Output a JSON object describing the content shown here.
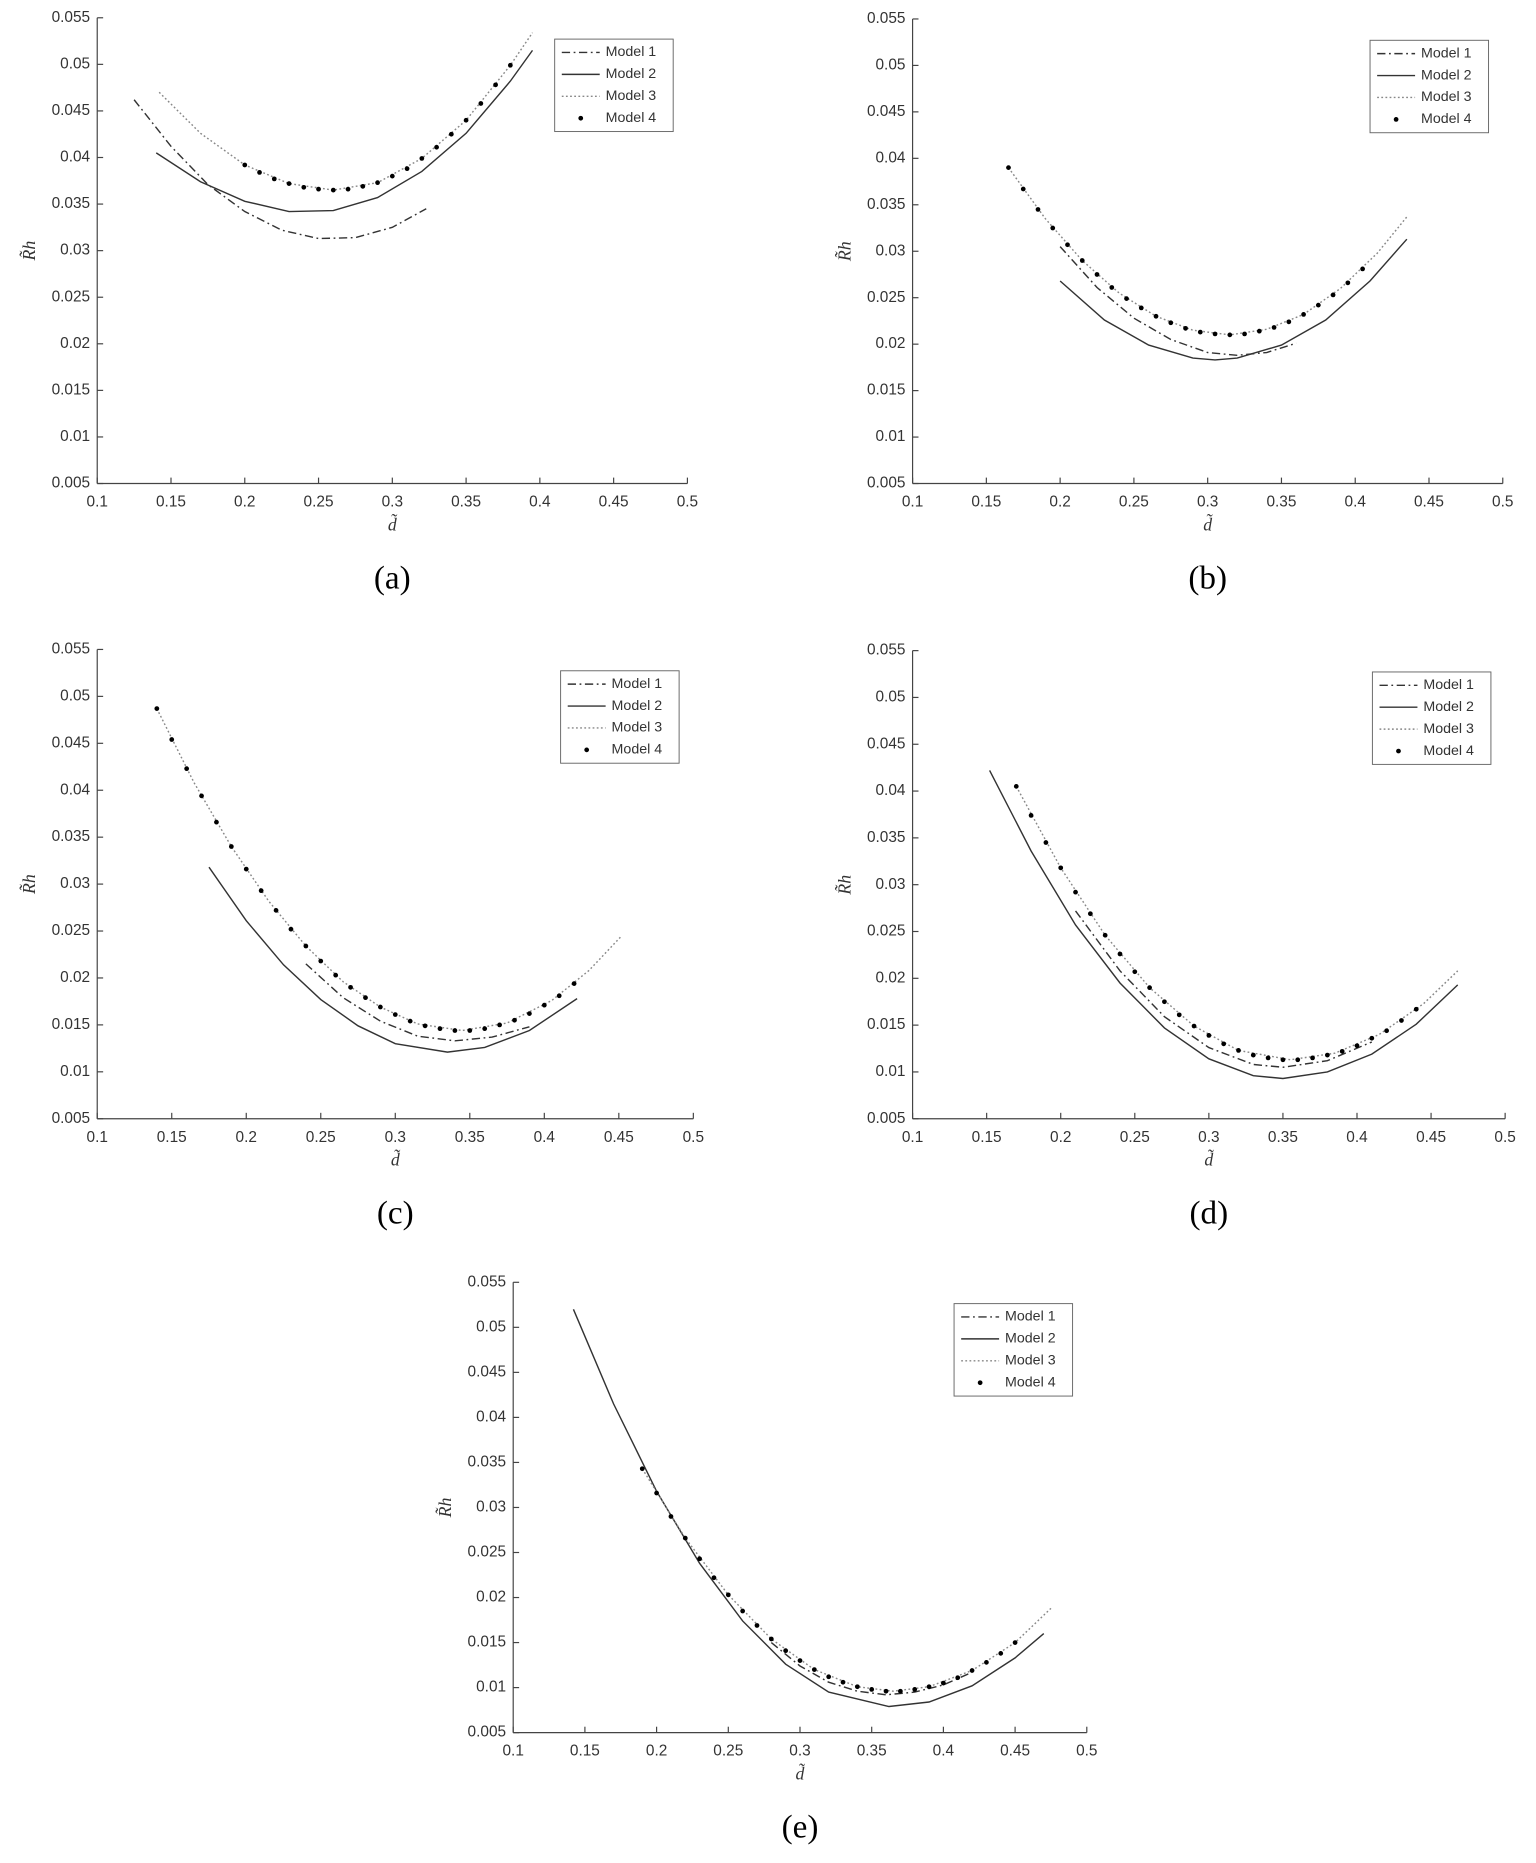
{
  "chart_data": [
    {
      "type": "line",
      "caption": "(a)",
      "xlabel": "d̃",
      "ylabel": "R̃h",
      "xlim": [
        0.1,
        0.5
      ],
      "xticks": [
        0.1,
        0.15,
        0.2,
        0.25,
        0.3,
        0.35,
        0.4,
        0.45,
        0.5
      ],
      "ylim": [
        0.005,
        0.055
      ],
      "yticks": [
        0.005,
        0.01,
        0.015,
        0.02,
        0.025,
        0.03,
        0.035,
        0.04,
        0.045,
        0.05,
        0.055
      ],
      "legend": "upper right",
      "series": [
        {
          "name": "Model 1",
          "color": "#333333",
          "style": "dashdot",
          "x": [
            0.125,
            0.15,
            0.175,
            0.2,
            0.225,
            0.25,
            0.275,
            0.3,
            0.323
          ],
          "values": [
            0.0462,
            0.0412,
            0.0371,
            0.0342,
            0.0322,
            0.0313,
            0.0314,
            0.0325,
            0.0345
          ]
        },
        {
          "name": "Model 2",
          "color": "#333333",
          "style": "solid",
          "x": [
            0.14,
            0.17,
            0.2,
            0.23,
            0.26,
            0.29,
            0.32,
            0.35,
            0.38,
            0.395
          ],
          "values": [
            0.0405,
            0.0374,
            0.0353,
            0.0342,
            0.0343,
            0.0357,
            0.0385,
            0.0426,
            0.0482,
            0.0515
          ]
        },
        {
          "name": "Model 3",
          "color": "#888888",
          "style": "dotted",
          "x": [
            0.142,
            0.17,
            0.2,
            0.23,
            0.26,
            0.29,
            0.32,
            0.35,
            0.38,
            0.395
          ],
          "values": [
            0.047,
            0.0426,
            0.0392,
            0.0372,
            0.0365,
            0.0373,
            0.0399,
            0.044,
            0.0499,
            0.0534
          ]
        },
        {
          "name": "Model 4",
          "color": "#000000",
          "style": "markers",
          "x": [
            0.2,
            0.21,
            0.22,
            0.23,
            0.24,
            0.25,
            0.26,
            0.27,
            0.28,
            0.29,
            0.3,
            0.31,
            0.32,
            0.33,
            0.34,
            0.35,
            0.36,
            0.37,
            0.38
          ],
          "values": [
            0.0392,
            0.0384,
            0.0377,
            0.0372,
            0.0368,
            0.0366,
            0.0365,
            0.0366,
            0.0369,
            0.0373,
            0.038,
            0.0388,
            0.0399,
            0.0411,
            0.0425,
            0.044,
            0.0458,
            0.0478,
            0.0499
          ]
        }
      ]
    },
    {
      "type": "line",
      "caption": "(b)",
      "xlabel": "d̃",
      "ylabel": "R̃h",
      "xlim": [
        0.1,
        0.5
      ],
      "xticks": [
        0.1,
        0.15,
        0.2,
        0.25,
        0.3,
        0.35,
        0.4,
        0.45,
        0.5
      ],
      "ylim": [
        0.005,
        0.055
      ],
      "yticks": [
        0.005,
        0.01,
        0.015,
        0.02,
        0.025,
        0.03,
        0.035,
        0.04,
        0.045,
        0.05,
        0.055
      ],
      "legend": "upper right",
      "series": [
        {
          "name": "Model 1",
          "color": "#333333",
          "style": "dashdot",
          "x": [
            0.2,
            0.225,
            0.25,
            0.275,
            0.3,
            0.32,
            0.34,
            0.36
          ],
          "values": [
            0.0305,
            0.0261,
            0.0228,
            0.0205,
            0.0191,
            0.0188,
            0.0191,
            0.0201
          ]
        },
        {
          "name": "Model 2",
          "color": "#333333",
          "style": "solid",
          "x": [
            0.2,
            0.23,
            0.26,
            0.29,
            0.305,
            0.32,
            0.35,
            0.38,
            0.41,
            0.435
          ],
          "values": [
            0.0268,
            0.0226,
            0.0199,
            0.0185,
            0.0183,
            0.0185,
            0.0199,
            0.0226,
            0.0268,
            0.0313
          ]
        },
        {
          "name": "Model 3",
          "color": "#888888",
          "style": "dotted",
          "x": [
            0.165,
            0.19,
            0.215,
            0.24,
            0.265,
            0.29,
            0.315,
            0.34,
            0.365,
            0.39,
            0.415,
            0.435
          ],
          "values": [
            0.039,
            0.0335,
            0.029,
            0.0255,
            0.023,
            0.0215,
            0.021,
            0.0216,
            0.0232,
            0.026,
            0.0298,
            0.0337
          ]
        },
        {
          "name": "Model 4",
          "color": "#000000",
          "style": "markers",
          "x": [
            0.165,
            0.175,
            0.185,
            0.195,
            0.205,
            0.215,
            0.225,
            0.235,
            0.245,
            0.255,
            0.265,
            0.275,
            0.285,
            0.295,
            0.305,
            0.315,
            0.325,
            0.335,
            0.345,
            0.355,
            0.365,
            0.375,
            0.385,
            0.395,
            0.405
          ],
          "values": [
            0.039,
            0.0367,
            0.0345,
            0.0325,
            0.0307,
            0.029,
            0.0275,
            0.0261,
            0.0249,
            0.0239,
            0.023,
            0.0223,
            0.0217,
            0.0213,
            0.0211,
            0.021,
            0.0211,
            0.0214,
            0.0218,
            0.0224,
            0.0232,
            0.0242,
            0.0253,
            0.0266,
            0.0281
          ]
        }
      ]
    },
    {
      "type": "line",
      "caption": "(c)",
      "xlabel": "d̃",
      "ylabel": "R̃h",
      "xlim": [
        0.1,
        0.5
      ],
      "xticks": [
        0.1,
        0.15,
        0.2,
        0.25,
        0.3,
        0.35,
        0.4,
        0.45,
        0.5
      ],
      "ylim": [
        0.005,
        0.055
      ],
      "yticks": [
        0.005,
        0.01,
        0.015,
        0.02,
        0.025,
        0.03,
        0.035,
        0.04,
        0.045,
        0.05,
        0.055
      ],
      "legend": "upper right",
      "series": [
        {
          "name": "Model 1",
          "color": "#333333",
          "style": "dashdot",
          "x": [
            0.24,
            0.265,
            0.29,
            0.315,
            0.34,
            0.365,
            0.39
          ],
          "values": [
            0.0215,
            0.0179,
            0.0154,
            0.0138,
            0.0133,
            0.0137,
            0.0148
          ]
        },
        {
          "name": "Model 2",
          "color": "#333333",
          "style": "solid",
          "x": [
            0.175,
            0.2,
            0.225,
            0.25,
            0.275,
            0.3,
            0.335,
            0.36,
            0.39,
            0.422
          ],
          "values": [
            0.0318,
            0.0261,
            0.0214,
            0.0177,
            0.0149,
            0.013,
            0.0121,
            0.0126,
            0.0144,
            0.0178
          ]
        },
        {
          "name": "Model 3",
          "color": "#888888",
          "style": "dotted",
          "x": [
            0.14,
            0.165,
            0.19,
            0.215,
            0.24,
            0.265,
            0.29,
            0.315,
            0.345,
            0.375,
            0.405,
            0.43,
            0.452
          ],
          "values": [
            0.0487,
            0.0408,
            0.034,
            0.0282,
            0.0234,
            0.0196,
            0.0169,
            0.0151,
            0.0144,
            0.0152,
            0.0176,
            0.0208,
            0.0245
          ]
        },
        {
          "name": "Model 4",
          "color": "#000000",
          "style": "markers",
          "x": [
            0.14,
            0.15,
            0.16,
            0.17,
            0.18,
            0.19,
            0.2,
            0.21,
            0.22,
            0.23,
            0.24,
            0.25,
            0.26,
            0.27,
            0.28,
            0.29,
            0.3,
            0.31,
            0.32,
            0.33,
            0.34,
            0.35,
            0.36,
            0.37,
            0.38,
            0.39,
            0.4,
            0.41,
            0.42
          ],
          "values": [
            0.0487,
            0.0454,
            0.0423,
            0.0394,
            0.0366,
            0.034,
            0.0316,
            0.0293,
            0.0272,
            0.0252,
            0.0234,
            0.0218,
            0.0203,
            0.019,
            0.0179,
            0.0169,
            0.0161,
            0.0154,
            0.0149,
            0.0146,
            0.0144,
            0.0144,
            0.0146,
            0.015,
            0.0155,
            0.0162,
            0.0171,
            0.0181,
            0.0194
          ]
        }
      ]
    },
    {
      "type": "line",
      "caption": "(d)",
      "xlabel": "d̃",
      "ylabel": "R̃h",
      "xlim": [
        0.1,
        0.5
      ],
      "xticks": [
        0.1,
        0.15,
        0.2,
        0.25,
        0.3,
        0.35,
        0.4,
        0.45,
        0.5
      ],
      "ylim": [
        0.005,
        0.055
      ],
      "yticks": [
        0.005,
        0.01,
        0.015,
        0.02,
        0.025,
        0.03,
        0.035,
        0.04,
        0.045,
        0.05,
        0.055
      ],
      "legend": "upper right",
      "series": [
        {
          "name": "Model 1",
          "color": "#333333",
          "style": "dashdot",
          "x": [
            0.21,
            0.24,
            0.27,
            0.3,
            0.33,
            0.35,
            0.38,
            0.41
          ],
          "values": [
            0.0272,
            0.0208,
            0.0159,
            0.0126,
            0.0108,
            0.0105,
            0.0112,
            0.0132
          ]
        },
        {
          "name": "Model 2",
          "color": "#333333",
          "style": "solid",
          "x": [
            0.152,
            0.18,
            0.21,
            0.24,
            0.27,
            0.3,
            0.33,
            0.35,
            0.38,
            0.41,
            0.44,
            0.468
          ],
          "values": [
            0.0422,
            0.0336,
            0.0257,
            0.0195,
            0.0147,
            0.0114,
            0.0096,
            0.0093,
            0.01,
            0.0119,
            0.0151,
            0.0193
          ]
        },
        {
          "name": "Model 3",
          "color": "#888888",
          "style": "dotted",
          "x": [
            0.17,
            0.2,
            0.23,
            0.26,
            0.29,
            0.32,
            0.355,
            0.385,
            0.415,
            0.445,
            0.468
          ],
          "values": [
            0.0405,
            0.0318,
            0.0246,
            0.019,
            0.0149,
            0.0123,
            0.0113,
            0.012,
            0.014,
            0.0173,
            0.0208
          ]
        },
        {
          "name": "Model 4",
          "color": "#000000",
          "style": "markers",
          "x": [
            0.17,
            0.18,
            0.19,
            0.2,
            0.21,
            0.22,
            0.23,
            0.24,
            0.25,
            0.26,
            0.27,
            0.28,
            0.29,
            0.3,
            0.31,
            0.32,
            0.33,
            0.34,
            0.35,
            0.36,
            0.37,
            0.38,
            0.39,
            0.4,
            0.41,
            0.42,
            0.43,
            0.44
          ],
          "values": [
            0.0405,
            0.0374,
            0.0345,
            0.0318,
            0.0292,
            0.0269,
            0.0246,
            0.0226,
            0.0207,
            0.019,
            0.0175,
            0.0161,
            0.0149,
            0.0139,
            0.013,
            0.0123,
            0.0118,
            0.0115,
            0.0113,
            0.0113,
            0.0115,
            0.0118,
            0.0122,
            0.0128,
            0.0136,
            0.0144,
            0.0155,
            0.0167
          ]
        }
      ]
    },
    {
      "type": "line",
      "caption": "(e)",
      "xlabel": "d̃",
      "ylabel": "R̃h",
      "xlim": [
        0.1,
        0.5
      ],
      "xticks": [
        0.1,
        0.15,
        0.2,
        0.25,
        0.3,
        0.35,
        0.4,
        0.45,
        0.5
      ],
      "ylim": [
        0.005,
        0.055
      ],
      "yticks": [
        0.005,
        0.01,
        0.015,
        0.02,
        0.025,
        0.03,
        0.035,
        0.04,
        0.045,
        0.05,
        0.055
      ],
      "legend": "upper right",
      "series": [
        {
          "name": "Model 1",
          "color": "#333333",
          "style": "dashdot",
          "x": [
            0.28,
            0.3,
            0.32,
            0.34,
            0.36,
            0.38,
            0.4,
            0.42
          ],
          "values": [
            0.015,
            0.0124,
            0.0106,
            0.0096,
            0.0092,
            0.0095,
            0.0103,
            0.0117
          ]
        },
        {
          "name": "Model 2",
          "color": "#333333",
          "style": "solid",
          "x": [
            0.142,
            0.17,
            0.2,
            0.23,
            0.26,
            0.29,
            0.32,
            0.362,
            0.39,
            0.42,
            0.45,
            0.47
          ],
          "values": [
            0.052,
            0.0415,
            0.0318,
            0.0238,
            0.0174,
            0.0126,
            0.0095,
            0.0079,
            0.0084,
            0.0102,
            0.0133,
            0.016
          ]
        },
        {
          "name": "Model 3",
          "color": "#888888",
          "style": "dotted",
          "x": [
            0.19,
            0.22,
            0.25,
            0.28,
            0.31,
            0.34,
            0.365,
            0.39,
            0.42,
            0.45,
            0.475
          ],
          "values": [
            0.0343,
            0.0266,
            0.0203,
            0.0154,
            0.012,
            0.0101,
            0.0096,
            0.0101,
            0.0119,
            0.015,
            0.0188
          ]
        },
        {
          "name": "Model 4",
          "color": "#000000",
          "style": "markers",
          "x": [
            0.19,
            0.2,
            0.21,
            0.22,
            0.23,
            0.24,
            0.25,
            0.26,
            0.27,
            0.28,
            0.29,
            0.3,
            0.31,
            0.32,
            0.33,
            0.34,
            0.35,
            0.36,
            0.37,
            0.38,
            0.39,
            0.4,
            0.41,
            0.42,
            0.43,
            0.44,
            0.45
          ],
          "values": [
            0.0343,
            0.0316,
            0.029,
            0.0266,
            0.0243,
            0.0222,
            0.0203,
            0.0185,
            0.0169,
            0.0154,
            0.0141,
            0.013,
            0.012,
            0.0112,
            0.0106,
            0.0101,
            0.0098,
            0.0096,
            0.0096,
            0.0098,
            0.0101,
            0.0105,
            0.0111,
            0.0119,
            0.0128,
            0.0138,
            0.015
          ]
        }
      ]
    }
  ]
}
